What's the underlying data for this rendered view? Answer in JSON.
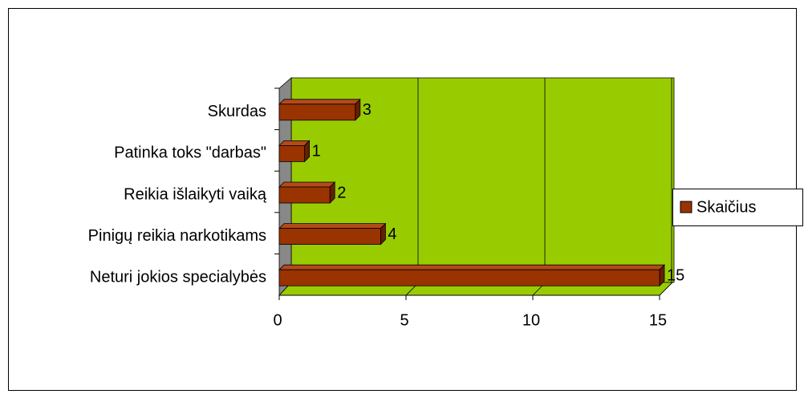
{
  "chart_data": {
    "type": "bar",
    "orientation": "horizontal",
    "categories": [
      "Skurdas",
      "Patinka toks \"darbas\"",
      "Reikia išlaikyti vaiką",
      "Pinigų reikia narkotikams",
      "Neturi jokios specialybės"
    ],
    "series": [
      {
        "name": "Skaičius",
        "color": "#993300",
        "values": [
          3,
          1,
          2,
          4,
          15
        ]
      }
    ],
    "xlim": [
      0,
      15
    ],
    "xticks": [
      0,
      5,
      10,
      15
    ],
    "grid": true,
    "legend": "right"
  }
}
